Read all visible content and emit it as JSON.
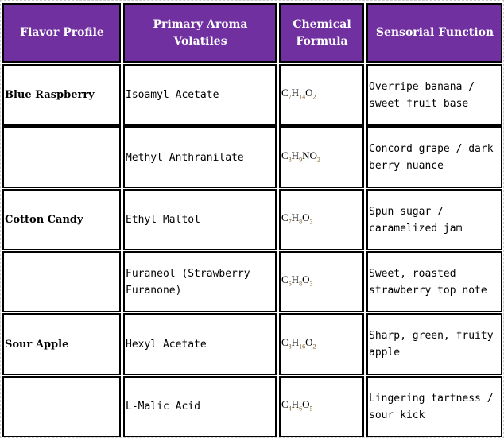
{
  "headers": [
    "Flavor Profile",
    "Primary Aroma Volatiles",
    "Chemical Formula",
    "Sensorial Function"
  ],
  "rows": [
    {
      "flavor": "Blue Raspberry",
      "volatile": "Isoamyl Acetate",
      "formula": [
        [
          "C",
          "7"
        ],
        [
          "H",
          "14"
        ],
        [
          "O",
          "2"
        ]
      ],
      "function": "Overripe banana / sweet fruit base"
    },
    {
      "flavor": "",
      "volatile": "Methyl Anthranilate",
      "formula": [
        [
          "C",
          "8"
        ],
        [
          "H",
          "9"
        ],
        [
          "NO",
          "2"
        ]
      ],
      "function": "Concord grape / dark berry nuance"
    },
    {
      "flavor": "Cotton Candy",
      "volatile": "Ethyl Maltol",
      "formula": [
        [
          "C",
          "7"
        ],
        [
          "H",
          "8"
        ],
        [
          "O",
          "3"
        ]
      ],
      "function": "Spun sugar / caramelized jam"
    },
    {
      "flavor": "",
      "volatile": "Furaneol (Strawberry Furanone)",
      "formula": [
        [
          "C",
          "6"
        ],
        [
          "H",
          "8"
        ],
        [
          "O",
          "3"
        ]
      ],
      "function": "Sweet, roasted strawberry top note"
    },
    {
      "flavor": "Sour Apple",
      "volatile": "Hexyl Acetate",
      "formula": [
        [
          "C",
          "8"
        ],
        [
          "H",
          "16"
        ],
        [
          "O",
          "2"
        ]
      ],
      "function": "Sharp, green, fruity apple"
    },
    {
      "flavor": "",
      "volatile": "L-Malic Acid",
      "formula": [
        [
          "C",
          "4"
        ],
        [
          "H",
          "6"
        ],
        [
          "O",
          "5"
        ]
      ],
      "function": "Lingering tartness / sour kick"
    }
  ],
  "colors": {
    "header_bg": "#7030a0",
    "header_text": "#ffffff"
  }
}
